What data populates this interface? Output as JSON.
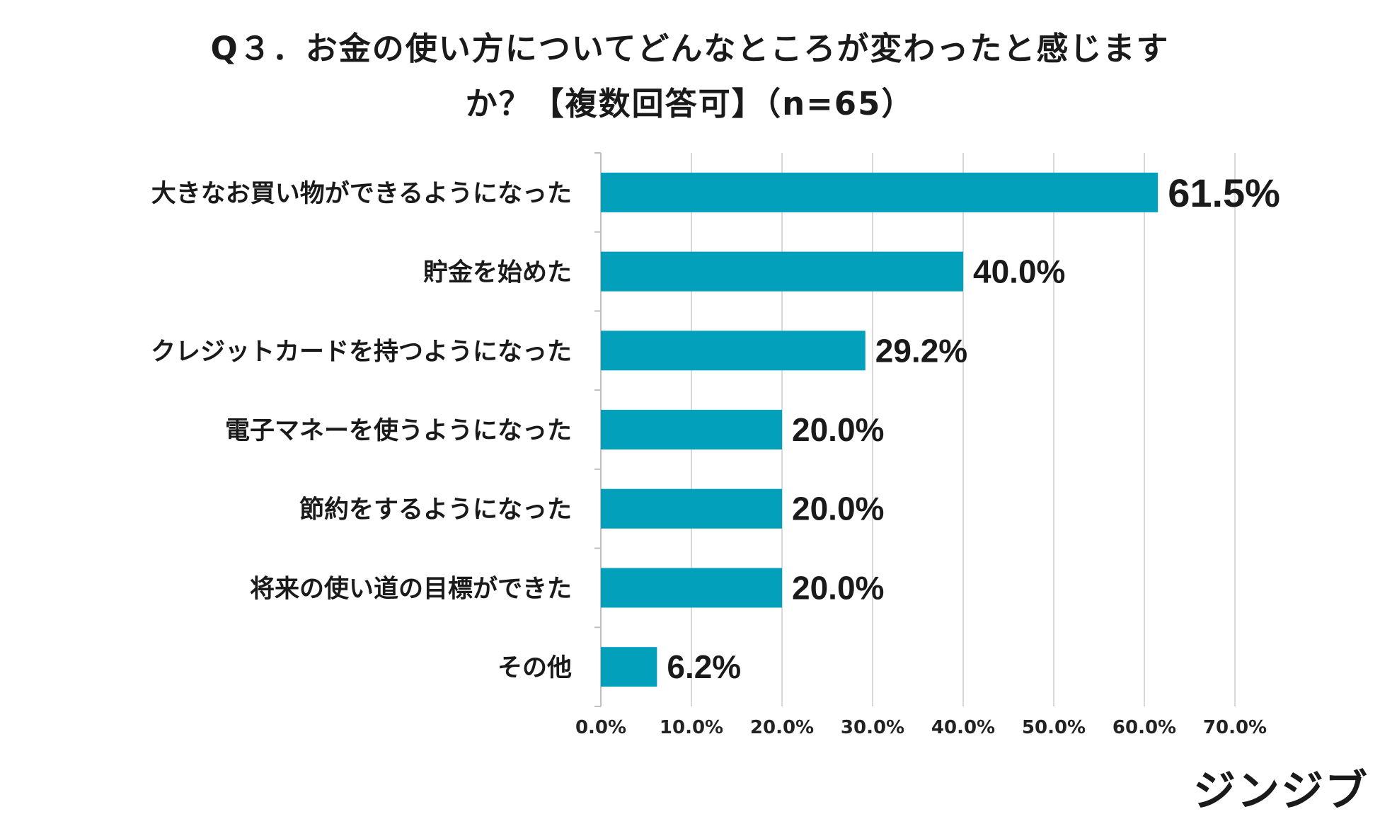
{
  "title": {
    "line1": "Q３．お金の使い方についてどんなところが変わったと感じます",
    "line2": "か？【複数回答可】（n=65）"
  },
  "chart_data": {
    "type": "bar",
    "orientation": "horizontal",
    "categories": [
      "大きなお買い物ができるようになった",
      "貯金を始めた",
      "クレジットカードを持つようになった",
      "電子マネーを使うようになった",
      "節約をするようになった",
      "将来の使い道の目標ができた",
      "その他"
    ],
    "values": [
      61.5,
      40.0,
      29.2,
      20.0,
      20.0,
      20.0,
      6.2
    ],
    "value_labels": [
      "61.5%",
      "40.0%",
      "29.2%",
      "20.0%",
      "20.0%",
      "20.0%",
      "6.2%"
    ],
    "x_ticks": [
      "0.0%",
      "10.0%",
      "20.0%",
      "30.0%",
      "40.0%",
      "50.0%",
      "60.0%",
      "70.0%"
    ],
    "xlim": [
      0,
      70
    ],
    "grid": true,
    "bar_color": "#03A0BC",
    "grid_color": "#d9d9d9"
  },
  "logo": "ジンジブ"
}
